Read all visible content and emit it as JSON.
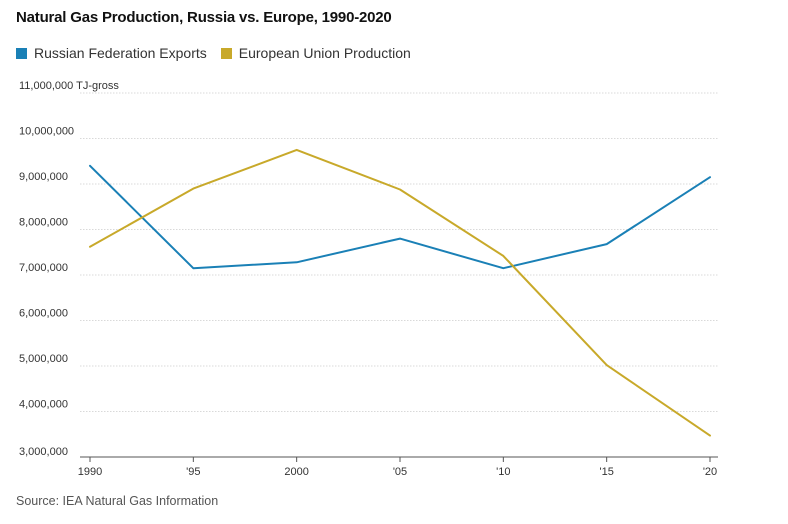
{
  "title": "Natural Gas Production, Russia vs. Europe, 1990-2020",
  "source": "Source: IEA Natural Gas Information",
  "chart_data": {
    "type": "line",
    "title": "Natural Gas Production, Russia vs. Europe, 1990-2020",
    "xlabel": "",
    "ylabel": "",
    "y_unit": "TJ-gross",
    "x": [
      1990,
      1995,
      2000,
      2005,
      2010,
      2015,
      2020
    ],
    "x_tick_labels": [
      "1990",
      "'95",
      "2000",
      "'05",
      "'10",
      "'15",
      "'20"
    ],
    "y_ticks": [
      3000000,
      4000000,
      5000000,
      6000000,
      7000000,
      8000000,
      9000000,
      10000000,
      11000000
    ],
    "y_tick_labels": [
      "3,000,000",
      "4,000,000",
      "5,000,000",
      "6,000,000",
      "7,000,000",
      "8,000,000",
      "9,000,000",
      "10,000,000",
      "11,000,000"
    ],
    "ylim": [
      3000000,
      11000000
    ],
    "xlim": [
      1990,
      2020
    ],
    "grid": "horizontal",
    "legend_position": "top-left",
    "series": [
      {
        "name": "Russian Federation Exports",
        "color": "#1a80b6",
        "values": [
          9400000,
          7150000,
          7280000,
          7800000,
          7150000,
          7680000,
          9150000
        ]
      },
      {
        "name": "European Union Production",
        "color": "#c8a92a",
        "values": [
          7620000,
          8900000,
          9750000,
          8880000,
          7420000,
          5020000,
          3470000
        ]
      }
    ]
  }
}
